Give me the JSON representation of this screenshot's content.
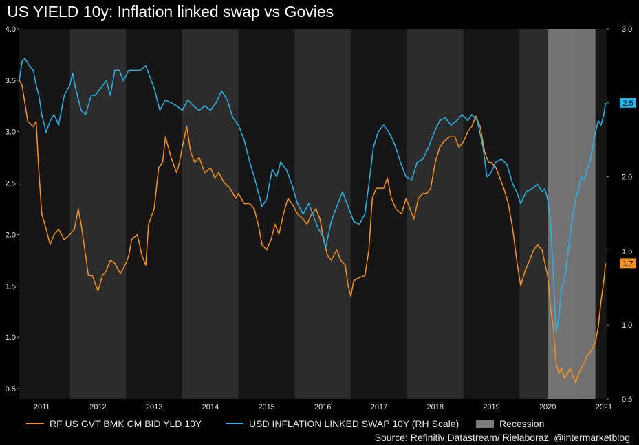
{
  "title": "US YIELD 10y: Inflation linked swap vs Govies",
  "source": "Source: Refinitiv Datastream/ Rielaboraz. @intermarketblog",
  "colors": {
    "background": "#000000",
    "plot_band_dark": "#161616",
    "plot_band_light": "#2c2c2c",
    "govt_series": "#f7931e",
    "swap_series": "#29b6e8",
    "recession": "#7a7a7a",
    "text": "#e6e6e6"
  },
  "legend": {
    "govt": "RF US GVT BMK CM BID YLD 10Y",
    "swap": "USD INFLATION LINKED SWAP 10Y (RH Scale)",
    "recession": "Recession"
  },
  "chart_data": {
    "type": "line",
    "x_ticks": [
      "2011",
      "2012",
      "2013",
      "2014",
      "2015",
      "2016",
      "2017",
      "2018",
      "2019",
      "2020",
      "2021"
    ],
    "xlim": [
      2010.6,
      2021.05
    ],
    "y_left": {
      "lim": [
        0.4,
        4.0
      ],
      "ticks": [
        "0.5",
        "1.0",
        "1.5",
        "2.0",
        "2.5",
        "3.0",
        "3.5",
        "4.0"
      ]
    },
    "y_right": {
      "lim": [
        0.5,
        3.0
      ],
      "ticks": [
        "0.5",
        "1.0",
        "1.5",
        "2.0",
        "2.5",
        "3.0"
      ]
    },
    "recession": {
      "start": 2020.0,
      "end": 2020.85,
      "label": "Recession"
    },
    "series": [
      {
        "name": "RF US GVT BMK CM BID YLD 10Y",
        "axis": "left",
        "last_label": "1.7",
        "points": [
          [
            2010.6,
            3.5
          ],
          [
            2010.65,
            3.45
          ],
          [
            2010.75,
            3.1
          ],
          [
            2010.85,
            3.05
          ],
          [
            2010.9,
            3.1
          ],
          [
            2010.95,
            2.6
          ],
          [
            2011.0,
            2.2
          ],
          [
            2011.08,
            2.05
          ],
          [
            2011.15,
            1.9
          ],
          [
            2011.22,
            2.0
          ],
          [
            2011.3,
            2.05
          ],
          [
            2011.4,
            1.95
          ],
          [
            2011.5,
            2.0
          ],
          [
            2011.58,
            2.05
          ],
          [
            2011.65,
            2.25
          ],
          [
            2011.7,
            2.1
          ],
          [
            2011.78,
            1.8
          ],
          [
            2011.83,
            1.6
          ],
          [
            2011.9,
            1.6
          ],
          [
            2012.0,
            1.45
          ],
          [
            2012.08,
            1.6
          ],
          [
            2012.15,
            1.65
          ],
          [
            2012.22,
            1.75
          ],
          [
            2012.3,
            1.72
          ],
          [
            2012.4,
            1.62
          ],
          [
            2012.5,
            1.72
          ],
          [
            2012.55,
            1.8
          ],
          [
            2012.6,
            1.95
          ],
          [
            2012.7,
            2.0
          ],
          [
            2012.78,
            1.8
          ],
          [
            2012.85,
            1.7
          ],
          [
            2012.9,
            2.1
          ],
          [
            2013.0,
            2.25
          ],
          [
            2013.08,
            2.65
          ],
          [
            2013.15,
            2.7
          ],
          [
            2013.2,
            2.95
          ],
          [
            2013.3,
            2.75
          ],
          [
            2013.4,
            2.6
          ],
          [
            2013.45,
            2.7
          ],
          [
            2013.5,
            2.85
          ],
          [
            2013.58,
            3.05
          ],
          [
            2013.65,
            2.8
          ],
          [
            2013.72,
            2.7
          ],
          [
            2013.8,
            2.75
          ],
          [
            2013.9,
            2.6
          ],
          [
            2014.0,
            2.65
          ],
          [
            2014.08,
            2.55
          ],
          [
            2014.15,
            2.6
          ],
          [
            2014.25,
            2.5
          ],
          [
            2014.35,
            2.45
          ],
          [
            2014.45,
            2.35
          ],
          [
            2014.5,
            2.4
          ],
          [
            2014.6,
            2.3
          ],
          [
            2014.7,
            2.3
          ],
          [
            2014.78,
            2.25
          ],
          [
            2014.85,
            2.1
          ],
          [
            2014.92,
            1.9
          ],
          [
            2015.0,
            1.85
          ],
          [
            2015.08,
            1.95
          ],
          [
            2015.15,
            2.1
          ],
          [
            2015.22,
            2.0
          ],
          [
            2015.3,
            2.2
          ],
          [
            2015.38,
            2.35
          ],
          [
            2015.45,
            2.3
          ],
          [
            2015.55,
            2.2
          ],
          [
            2015.65,
            2.15
          ],
          [
            2015.72,
            2.1
          ],
          [
            2015.8,
            2.2
          ],
          [
            2015.88,
            2.25
          ],
          [
            2015.95,
            2.15
          ],
          [
            2016.0,
            2.0
          ],
          [
            2016.08,
            1.8
          ],
          [
            2016.15,
            1.75
          ],
          [
            2016.25,
            1.85
          ],
          [
            2016.32,
            1.75
          ],
          [
            2016.4,
            1.7
          ],
          [
            2016.45,
            1.5
          ],
          [
            2016.5,
            1.4
          ],
          [
            2016.55,
            1.55
          ],
          [
            2016.65,
            1.58
          ],
          [
            2016.75,
            1.6
          ],
          [
            2016.82,
            1.85
          ],
          [
            2016.88,
            2.35
          ],
          [
            2016.95,
            2.45
          ],
          [
            2017.0,
            2.45
          ],
          [
            2017.08,
            2.45
          ],
          [
            2017.15,
            2.55
          ],
          [
            2017.22,
            2.35
          ],
          [
            2017.3,
            2.25
          ],
          [
            2017.4,
            2.2
          ],
          [
            2017.48,
            2.35
          ],
          [
            2017.55,
            2.25
          ],
          [
            2017.62,
            2.15
          ],
          [
            2017.7,
            2.35
          ],
          [
            2017.78,
            2.4
          ],
          [
            2017.85,
            2.4
          ],
          [
            2017.92,
            2.45
          ],
          [
            2018.0,
            2.7
          ],
          [
            2018.08,
            2.85
          ],
          [
            2018.15,
            2.9
          ],
          [
            2018.25,
            2.95
          ],
          [
            2018.35,
            2.95
          ],
          [
            2018.42,
            2.85
          ],
          [
            2018.5,
            2.9
          ],
          [
            2018.58,
            3.0
          ],
          [
            2018.65,
            3.05
          ],
          [
            2018.72,
            3.15
          ],
          [
            2018.8,
            3.05
          ],
          [
            2018.88,
            2.8
          ],
          [
            2018.95,
            2.7
          ],
          [
            2019.0,
            2.7
          ],
          [
            2019.08,
            2.65
          ],
          [
            2019.15,
            2.55
          ],
          [
            2019.22,
            2.45
          ],
          [
            2019.3,
            2.3
          ],
          [
            2019.38,
            2.05
          ],
          [
            2019.45,
            1.75
          ],
          [
            2019.52,
            1.5
          ],
          [
            2019.6,
            1.65
          ],
          [
            2019.68,
            1.75
          ],
          [
            2019.75,
            1.85
          ],
          [
            2019.82,
            1.9
          ],
          [
            2019.9,
            1.85
          ],
          [
            2019.95,
            1.72
          ],
          [
            2020.0,
            1.6
          ],
          [
            2020.05,
            1.3
          ],
          [
            2020.1,
            1.1
          ],
          [
            2020.15,
            0.75
          ],
          [
            2020.2,
            0.65
          ],
          [
            2020.25,
            0.7
          ],
          [
            2020.3,
            0.6
          ],
          [
            2020.35,
            0.65
          ],
          [
            2020.4,
            0.7
          ],
          [
            2020.45,
            0.62
          ],
          [
            2020.5,
            0.56
          ],
          [
            2020.55,
            0.65
          ],
          [
            2020.6,
            0.7
          ],
          [
            2020.65,
            0.75
          ],
          [
            2020.7,
            0.82
          ],
          [
            2020.75,
            0.85
          ],
          [
            2020.8,
            0.9
          ],
          [
            2020.85,
            0.95
          ],
          [
            2020.9,
            1.1
          ],
          [
            2020.95,
            1.35
          ],
          [
            2021.0,
            1.55
          ],
          [
            2021.03,
            1.72
          ]
        ]
      },
      {
        "name": "USD INFLATION LINKED SWAP 10Y (RH Scale)",
        "axis": "right",
        "last_label": "2.5",
        "points": [
          [
            2010.6,
            2.65
          ],
          [
            2010.65,
            2.78
          ],
          [
            2010.7,
            2.8
          ],
          [
            2010.78,
            2.75
          ],
          [
            2010.85,
            2.72
          ],
          [
            2010.9,
            2.62
          ],
          [
            2010.95,
            2.55
          ],
          [
            2011.0,
            2.42
          ],
          [
            2011.08,
            2.3
          ],
          [
            2011.15,
            2.38
          ],
          [
            2011.22,
            2.42
          ],
          [
            2011.3,
            2.35
          ],
          [
            2011.4,
            2.55
          ],
          [
            2011.5,
            2.62
          ],
          [
            2011.55,
            2.7
          ],
          [
            2011.6,
            2.6
          ],
          [
            2011.7,
            2.45
          ],
          [
            2011.78,
            2.42
          ],
          [
            2011.88,
            2.55
          ],
          [
            2011.95,
            2.55
          ],
          [
            2012.05,
            2.6
          ],
          [
            2012.15,
            2.65
          ],
          [
            2012.22,
            2.55
          ],
          [
            2012.3,
            2.72
          ],
          [
            2012.38,
            2.72
          ],
          [
            2012.45,
            2.65
          ],
          [
            2012.55,
            2.72
          ],
          [
            2012.65,
            2.72
          ],
          [
            2012.75,
            2.72
          ],
          [
            2012.85,
            2.75
          ],
          [
            2012.95,
            2.65
          ],
          [
            2013.0,
            2.6
          ],
          [
            2013.1,
            2.45
          ],
          [
            2013.2,
            2.52
          ],
          [
            2013.3,
            2.5
          ],
          [
            2013.4,
            2.48
          ],
          [
            2013.5,
            2.45
          ],
          [
            2013.6,
            2.52
          ],
          [
            2013.7,
            2.48
          ],
          [
            2013.8,
            2.45
          ],
          [
            2013.9,
            2.48
          ],
          [
            2014.0,
            2.45
          ],
          [
            2014.1,
            2.5
          ],
          [
            2014.2,
            2.58
          ],
          [
            2014.3,
            2.52
          ],
          [
            2014.4,
            2.4
          ],
          [
            2014.5,
            2.35
          ],
          [
            2014.6,
            2.25
          ],
          [
            2014.7,
            2.1
          ],
          [
            2014.78,
            2.0
          ],
          [
            2014.85,
            1.9
          ],
          [
            2014.92,
            1.8
          ],
          [
            2015.0,
            1.85
          ],
          [
            2015.1,
            2.05
          ],
          [
            2015.18,
            2.0
          ],
          [
            2015.25,
            2.1
          ],
          [
            2015.35,
            2.05
          ],
          [
            2015.45,
            1.95
          ],
          [
            2015.55,
            1.82
          ],
          [
            2015.65,
            1.75
          ],
          [
            2015.75,
            1.82
          ],
          [
            2015.85,
            1.72
          ],
          [
            2015.92,
            1.65
          ],
          [
            2016.0,
            1.6
          ],
          [
            2016.05,
            1.52
          ],
          [
            2016.15,
            1.7
          ],
          [
            2016.25,
            1.8
          ],
          [
            2016.35,
            1.9
          ],
          [
            2016.45,
            1.8
          ],
          [
            2016.55,
            1.7
          ],
          [
            2016.65,
            1.68
          ],
          [
            2016.75,
            1.75
          ],
          [
            2016.82,
            1.95
          ],
          [
            2016.9,
            2.2
          ],
          [
            2016.98,
            2.3
          ],
          [
            2017.08,
            2.35
          ],
          [
            2017.18,
            2.3
          ],
          [
            2017.28,
            2.22
          ],
          [
            2017.38,
            2.1
          ],
          [
            2017.48,
            2.0
          ],
          [
            2017.58,
            1.98
          ],
          [
            2017.68,
            2.1
          ],
          [
            2017.78,
            2.12
          ],
          [
            2017.88,
            2.2
          ],
          [
            2017.98,
            2.3
          ],
          [
            2018.08,
            2.38
          ],
          [
            2018.18,
            2.4
          ],
          [
            2018.28,
            2.35
          ],
          [
            2018.38,
            2.38
          ],
          [
            2018.48,
            2.42
          ],
          [
            2018.58,
            2.38
          ],
          [
            2018.65,
            2.42
          ],
          [
            2018.75,
            2.38
          ],
          [
            2018.85,
            2.2
          ],
          [
            2018.92,
            2.0
          ],
          [
            2018.98,
            2.02
          ],
          [
            2019.08,
            2.1
          ],
          [
            2019.18,
            2.12
          ],
          [
            2019.28,
            2.08
          ],
          [
            2019.38,
            1.95
          ],
          [
            2019.45,
            1.9
          ],
          [
            2019.52,
            1.82
          ],
          [
            2019.62,
            1.9
          ],
          [
            2019.72,
            1.92
          ],
          [
            2019.82,
            1.95
          ],
          [
            2019.9,
            1.9
          ],
          [
            2019.95,
            1.92
          ],
          [
            2020.0,
            1.85
          ],
          [
            2020.05,
            1.7
          ],
          [
            2020.1,
            1.35
          ],
          [
            2020.15,
            0.95
          ],
          [
            2020.2,
            1.05
          ],
          [
            2020.25,
            1.25
          ],
          [
            2020.3,
            1.3
          ],
          [
            2020.35,
            1.45
          ],
          [
            2020.4,
            1.6
          ],
          [
            2020.45,
            1.75
          ],
          [
            2020.5,
            1.85
          ],
          [
            2020.55,
            1.92
          ],
          [
            2020.6,
            2.0
          ],
          [
            2020.65,
            1.98
          ],
          [
            2020.7,
            2.05
          ],
          [
            2020.75,
            2.1
          ],
          [
            2020.8,
            2.2
          ],
          [
            2020.85,
            2.3
          ],
          [
            2020.9,
            2.38
          ],
          [
            2020.95,
            2.35
          ],
          [
            2021.0,
            2.42
          ],
          [
            2021.03,
            2.5
          ]
        ]
      }
    ]
  }
}
